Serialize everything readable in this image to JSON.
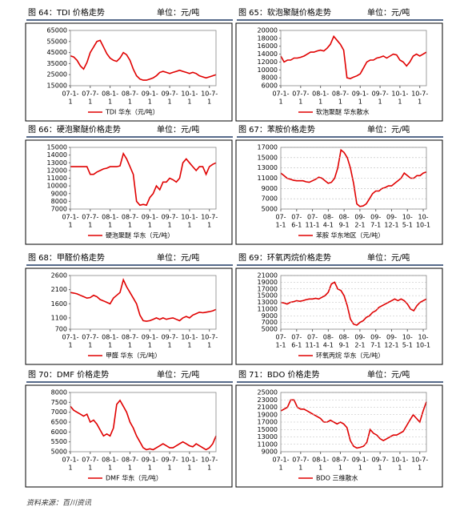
{
  "chart_data": [
    {
      "type": "line",
      "title": "图 64：TDI 价格走势",
      "unit": "单位：元/吨",
      "series": [
        {
          "name": "TDI 华东（元/吨）",
          "color": "#e00000",
          "values": [
            42000,
            41000,
            38000,
            33000,
            30000,
            36000,
            45000,
            50000,
            55000,
            56000,
            50000,
            44000,
            40000,
            38000,
            37000,
            40000,
            45000,
            43000,
            38000,
            30000,
            24000,
            21000,
            20000,
            20000,
            21000,
            22000,
            24000,
            27000,
            28000,
            27000,
            26000,
            27000,
            28000,
            29000,
            28000,
            27000,
            26000,
            27000,
            26000,
            24000,
            23000,
            22000,
            23000,
            24000,
            25000
          ]
        }
      ],
      "xlim": [
        0,
        44
      ],
      "xticks": [
        {
          "value": 0,
          "label": [
            "07-1-",
            "1"
          ]
        },
        {
          "value": 6,
          "label": [
            "07-7-",
            "1"
          ]
        },
        {
          "value": 12,
          "label": [
            "08-1-",
            "1"
          ]
        },
        {
          "value": 18,
          "label": [
            "08-7-",
            "1"
          ]
        },
        {
          "value": 24,
          "label": [
            "09-1-",
            "1"
          ]
        },
        {
          "value": 30,
          "label": [
            "09-7-",
            "1"
          ]
        },
        {
          "value": 36,
          "label": [
            "10-1-",
            "1"
          ]
        },
        {
          "value": 42,
          "label": [
            "10-7-",
            "1"
          ]
        }
      ],
      "ylim": [
        15000,
        65000
      ],
      "yticks": [
        15000,
        25000,
        35000,
        45000,
        55000,
        65000
      ],
      "grid": false
    },
    {
      "type": "line",
      "title": "图 65：软泡聚醚价格走势",
      "unit": "单位：元/吨",
      "series": [
        {
          "name": "软泡聚醚 华东散水",
          "color": "#e00000",
          "values": [
            13500,
            12000,
            12500,
            12500,
            13000,
            13000,
            13200,
            13500,
            14000,
            14500,
            14500,
            14800,
            15000,
            14800,
            15500,
            16500,
            18500,
            17500,
            16500,
            15000,
            8000,
            7800,
            8200,
            8500,
            9000,
            10500,
            12000,
            12500,
            12500,
            13000,
            13200,
            13500,
            13000,
            13500,
            14000,
            13800,
            12500,
            12000,
            11000,
            12000,
            13500,
            14000,
            13500,
            14000,
            14500
          ]
        }
      ],
      "xlim": [
        0,
        44
      ],
      "xticks": [
        {
          "value": 0,
          "label": [
            "07-1-",
            "1"
          ]
        },
        {
          "value": 6,
          "label": [
            "07-7-",
            "1"
          ]
        },
        {
          "value": 12,
          "label": [
            "08-1-",
            "1"
          ]
        },
        {
          "value": 18,
          "label": [
            "08-7-",
            "1"
          ]
        },
        {
          "value": 24,
          "label": [
            "09-1-",
            "1"
          ]
        },
        {
          "value": 30,
          "label": [
            "09-7-",
            "1"
          ]
        },
        {
          "value": 36,
          "label": [
            "10-1-",
            "1"
          ]
        },
        {
          "value": 42,
          "label": [
            "10-7-",
            "1"
          ]
        }
      ],
      "ylim": [
        6000,
        20000
      ],
      "yticks": [
        6000,
        8000,
        10000,
        12000,
        14000,
        16000,
        18000,
        20000
      ],
      "grid": false
    },
    {
      "type": "line",
      "title": "图 66：硬泡聚醚价格走势",
      "unit": "单位：元/吨",
      "series": [
        {
          "name": "硬泡聚醚 华东（元/吨）",
          "color": "#e00000",
          "values": [
            12500,
            12500,
            12500,
            12500,
            12500,
            12500,
            11500,
            11500,
            11800,
            12000,
            12200,
            12300,
            12500,
            12500,
            12500,
            12600,
            14200,
            13500,
            12500,
            11500,
            8000,
            7500,
            7600,
            7500,
            8500,
            9000,
            10000,
            9500,
            10500,
            10500,
            11000,
            10800,
            10500,
            11000,
            13000,
            13500,
            13000,
            12500,
            12000,
            12500,
            12500,
            11500,
            12500,
            12800,
            13000
          ]
        }
      ],
      "xlim": [
        0,
        44
      ],
      "xticks": [
        {
          "value": 0,
          "label": [
            "07-1-",
            "1"
          ]
        },
        {
          "value": 6,
          "label": [
            "07-7-",
            "1"
          ]
        },
        {
          "value": 12,
          "label": [
            "08-1-",
            "1"
          ]
        },
        {
          "value": 18,
          "label": [
            "08-7-",
            "1"
          ]
        },
        {
          "value": 24,
          "label": [
            "09-1-",
            "1"
          ]
        },
        {
          "value": 30,
          "label": [
            "09-7-",
            "1"
          ]
        },
        {
          "value": 36,
          "label": [
            "10-1-",
            "1"
          ]
        },
        {
          "value": 42,
          "label": [
            "10-7-",
            "1"
          ]
        }
      ],
      "ylim": [
        7000,
        15000
      ],
      "yticks": [
        7000,
        8000,
        9000,
        10000,
        11000,
        12000,
        13000,
        14000,
        15000
      ],
      "grid": false
    },
    {
      "type": "line",
      "title": "图 67：苯胺价格走势",
      "unit": "单位：元/吨",
      "series": [
        {
          "name": "苯胺 华东地区（元/吨）",
          "color": "#e00000",
          "values": [
            12000,
            11500,
            11000,
            10800,
            10600,
            10500,
            10500,
            10500,
            10300,
            10200,
            10500,
            10800,
            11200,
            11000,
            10500,
            10000,
            10200,
            11000,
            13000,
            16500,
            16000,
            15000,
            13000,
            10000,
            6000,
            5500,
            5600,
            6000,
            7000,
            8000,
            8500,
            8500,
            9000,
            9200,
            9500,
            9500,
            10000,
            10500,
            11000,
            12000,
            11500,
            11000,
            11000,
            11500,
            11500,
            12000,
            12200
          ]
        }
      ],
      "xlim": [
        0,
        46
      ],
      "xticks": [
        {
          "value": 0,
          "label": [
            "07-",
            "1-1"
          ]
        },
        {
          "value": 5,
          "label": [
            "07-",
            "6-1"
          ]
        },
        {
          "value": 10,
          "label": [
            "07-",
            "11-1"
          ]
        },
        {
          "value": 15,
          "label": [
            "08-",
            "4-1"
          ]
        },
        {
          "value": 20,
          "label": [
            "08-",
            "9-1"
          ]
        },
        {
          "value": 25,
          "label": [
            "09-",
            "2-1"
          ]
        },
        {
          "value": 30,
          "label": [
            "09-",
            "7-1"
          ]
        },
        {
          "value": 35,
          "label": [
            "09-",
            "12-1"
          ]
        },
        {
          "value": 40,
          "label": [
            "10-",
            "5-1"
          ]
        },
        {
          "value": 45,
          "label": [
            "10-",
            "10-1"
          ]
        }
      ],
      "ylim": [
        5000,
        17000
      ],
      "yticks": [
        5000,
        7000,
        9000,
        11000,
        13000,
        15000,
        17000
      ],
      "grid": true
    },
    {
      "type": "line",
      "title": "图 68：甲醛价格走势",
      "unit": "单位：元/吨",
      "series": [
        {
          "name": "甲醛 华东（元/吨）",
          "color": "#e00000",
          "values": [
            2000,
            1980,
            1950,
            1900,
            1850,
            1800,
            1820,
            1900,
            1850,
            1750,
            1700,
            1650,
            1600,
            1800,
            1900,
            2000,
            2450,
            2200,
            2000,
            1800,
            1600,
            1200,
            1000,
            980,
            1000,
            1050,
            1100,
            1050,
            1100,
            1050,
            1080,
            1100,
            1050,
            1000,
            1100,
            1150,
            1100,
            1200,
            1250,
            1300,
            1280,
            1300,
            1320,
            1350,
            1400
          ]
        }
      ],
      "xlim": [
        0,
        44
      ],
      "xticks": [
        {
          "value": 0,
          "label": [
            "07-1-",
            "1"
          ]
        },
        {
          "value": 6,
          "label": [
            "07-7-",
            "1"
          ]
        },
        {
          "value": 12,
          "label": [
            "08-1-",
            "1"
          ]
        },
        {
          "value": 18,
          "label": [
            "08-7-",
            "1"
          ]
        },
        {
          "value": 24,
          "label": [
            "09-1-",
            "1"
          ]
        },
        {
          "value": 30,
          "label": [
            "09-7-",
            "1"
          ]
        },
        {
          "value": 36,
          "label": [
            "10-1-",
            "1"
          ]
        },
        {
          "value": 42,
          "label": [
            "10-7-",
            "1"
          ]
        }
      ],
      "ylim": [
        700,
        2600
      ],
      "yticks": [
        700,
        1100,
        1600,
        2100,
        2600
      ],
      "grid": false
    },
    {
      "type": "line",
      "title": "图 69：环氧丙烷价格走势",
      "unit": "单位：元/吨",
      "series": [
        {
          "name": "环氧丙烷 华东（元/吨）",
          "color": "#e00000",
          "values": [
            13000,
            12800,
            12500,
            13000,
            13200,
            13500,
            13300,
            13500,
            13800,
            14000,
            14000,
            14200,
            14000,
            14500,
            15000,
            16000,
            18500,
            19000,
            17000,
            16500,
            15000,
            12000,
            8000,
            6500,
            6200,
            7000,
            7500,
            8500,
            9000,
            10000,
            10500,
            11500,
            12000,
            12500,
            13000,
            13500,
            14000,
            13500,
            14000,
            13500,
            12500,
            11000,
            10500,
            12000,
            13000,
            13500,
            14000
          ]
        }
      ],
      "xlim": [
        0,
        46
      ],
      "xticks": [
        {
          "value": 0,
          "label": [
            "07-",
            "1-1"
          ]
        },
        {
          "value": 5,
          "label": [
            "07-",
            "6-1"
          ]
        },
        {
          "value": 10,
          "label": [
            "07-",
            "11-1"
          ]
        },
        {
          "value": 15,
          "label": [
            "08-",
            "4-1"
          ]
        },
        {
          "value": 20,
          "label": [
            "08-",
            "9-1"
          ]
        },
        {
          "value": 25,
          "label": [
            "09-",
            "2-1"
          ]
        },
        {
          "value": 30,
          "label": [
            "09-",
            "7-1"
          ]
        },
        {
          "value": 35,
          "label": [
            "09-",
            "12-1"
          ]
        },
        {
          "value": 40,
          "label": [
            "10-",
            "5-1"
          ]
        },
        {
          "value": 45,
          "label": [
            "10-",
            "10-1"
          ]
        }
      ],
      "ylim": [
        5000,
        21000
      ],
      "yticks": [
        5000,
        7000,
        9000,
        11000,
        13000,
        15000,
        17000,
        19000,
        21000
      ],
      "grid": true
    },
    {
      "type": "line",
      "title": "图 70：DMF 价格走势",
      "unit": "单位：元/吨",
      "series": [
        {
          "name": "DMF 华东（元/吨）",
          "color": "#e00000",
          "values": [
            7300,
            7100,
            7000,
            6900,
            6800,
            6900,
            6500,
            6600,
            6400,
            6100,
            5800,
            5900,
            5800,
            6200,
            7400,
            7600,
            7300,
            7000,
            6500,
            6200,
            5800,
            5500,
            5200,
            5100,
            5150,
            5100,
            5200,
            5300,
            5400,
            5300,
            5200,
            5200,
            5300,
            5400,
            5500,
            5400,
            5300,
            5250,
            5400,
            5300,
            5200,
            5100,
            5200,
            5400,
            5800
          ]
        }
      ],
      "xlim": [
        0,
        44
      ],
      "xticks": [
        {
          "value": 0,
          "label": [
            "07-1-",
            "1"
          ]
        },
        {
          "value": 6,
          "label": [
            "07-7-",
            "1"
          ]
        },
        {
          "value": 12,
          "label": [
            "08-1-",
            "1"
          ]
        },
        {
          "value": 18,
          "label": [
            "08-7-",
            "1"
          ]
        },
        {
          "value": 24,
          "label": [
            "09-1-",
            "1"
          ]
        },
        {
          "value": 30,
          "label": [
            "09-7-",
            "1"
          ]
        },
        {
          "value": 36,
          "label": [
            "10-1-",
            "1"
          ]
        },
        {
          "value": 42,
          "label": [
            "10-7-",
            "1"
          ]
        }
      ],
      "ylim": [
        5000,
        8000
      ],
      "yticks": [
        5000,
        5500,
        6000,
        6500,
        7000,
        7500,
        8000
      ],
      "grid": false
    },
    {
      "type": "line",
      "title": "图 71：BDO 价格走势",
      "unit": "单位：元/吨",
      "series": [
        {
          "name": "BDO 三维散水",
          "color": "#e00000",
          "values": [
            20000,
            20500,
            21000,
            23000,
            23000,
            21000,
            20500,
            20500,
            20000,
            19500,
            19000,
            18500,
            18000,
            17000,
            17000,
            17500,
            17000,
            16500,
            17000,
            16500,
            15500,
            12000,
            10500,
            10000,
            10200,
            10500,
            11500,
            15000,
            14000,
            13500,
            12500,
            12000,
            12500,
            13000,
            13500,
            13500,
            14000,
            14500,
            16000,
            17500,
            19000,
            18000,
            17000,
            20000,
            22500
          ]
        }
      ],
      "xlim": [
        0,
        44
      ],
      "xticks": [
        {
          "value": 0,
          "label": [
            "07-1-",
            "1"
          ]
        },
        {
          "value": 6,
          "label": [
            "07-7-",
            "1"
          ]
        },
        {
          "value": 12,
          "label": [
            "08-1-",
            "1"
          ]
        },
        {
          "value": 18,
          "label": [
            "08-7-",
            "1"
          ]
        },
        {
          "value": 24,
          "label": [
            "09-1-",
            "1"
          ]
        },
        {
          "value": 30,
          "label": [
            "09-7-",
            "1"
          ]
        },
        {
          "value": 36,
          "label": [
            "10-1-",
            "1"
          ]
        },
        {
          "value": 42,
          "label": [
            "10-7-",
            "1"
          ]
        }
      ],
      "ylim": [
        9000,
        25000
      ],
      "yticks": [
        9000,
        11000,
        13000,
        15000,
        17000,
        19000,
        21000,
        23000,
        25000
      ],
      "grid": true
    }
  ],
  "source": "资料来源：百川资讯"
}
